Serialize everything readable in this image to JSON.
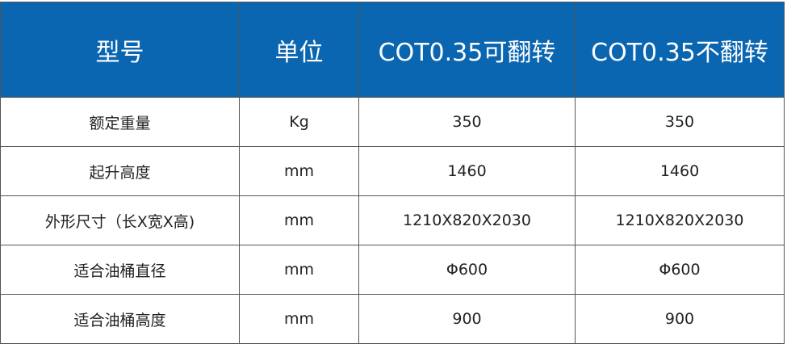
{
  "header": [
    "型号",
    "单位",
    "COT0.35可翻转",
    "COT0.35不翻转"
  ],
  "rows": [
    [
      "额定重量",
      "Kg",
      "350",
      "350"
    ],
    [
      "起升高度",
      "mm",
      "1460",
      "1460"
    ],
    [
      "外形尺寸（长X宽X高)",
      "mm",
      "1210X820X2030",
      "1210X820X2030"
    ],
    [
      "适合油桶直径",
      "mm",
      "Φ600",
      "Φ600"
    ],
    [
      "适合油桶高度",
      "mm",
      "900",
      "900"
    ]
  ],
  "colors": {
    "header_bg": "#0a66b0",
    "header_text": "#ffffff"
  }
}
